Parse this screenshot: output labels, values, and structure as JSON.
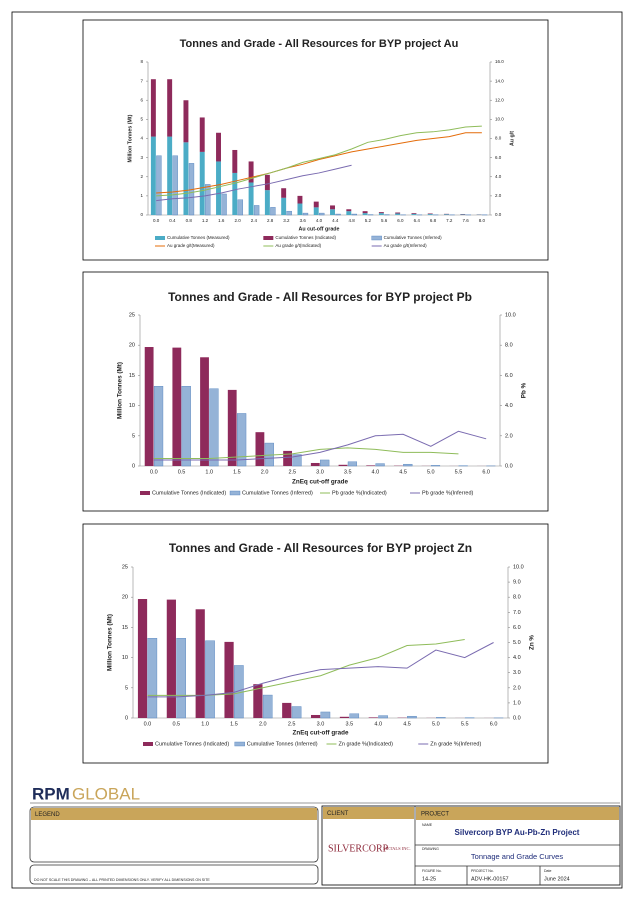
{
  "chart_data": [
    {
      "type": "combo",
      "title": "Tonnes and Grade - All Resources for BYP project Au",
      "x_label": "Au cut-off grade",
      "y_label": "Million Tonnes (Mt)",
      "y2_label": "Au g/t",
      "categories": [
        "0.0",
        "0.4",
        "0.8",
        "1.2",
        "1.6",
        "2.0",
        "2.4",
        "2.8",
        "3.2",
        "3.6",
        "4.0",
        "4.4",
        "4.8",
        "5.2",
        "5.6",
        "6.0",
        "6.4",
        "6.8",
        "7.2",
        "7.6",
        "8.0"
      ],
      "ylim": [
        0,
        8
      ],
      "yticks": [
        0,
        1,
        2,
        3,
        4,
        5,
        6,
        7,
        8
      ],
      "y2lim": [
        0,
        16
      ],
      "y2ticks": [
        {
          "value": 0,
          "label": "0.0"
        },
        {
          "value": 2,
          "label": "2.0"
        },
        {
          "value": 4,
          "label": "4.0"
        },
        {
          "value": 6,
          "label": "6.0"
        },
        {
          "value": 8,
          "label": "8.0"
        },
        {
          "value": 10,
          "label": "10.0"
        },
        {
          "value": 12,
          "label": "12.0"
        },
        {
          "value": 14,
          "label": "14.0"
        },
        {
          "value": 16,
          "label": "16.0"
        }
      ],
      "series": [
        {
          "name": "Cumulative Tonnes (Measured)",
          "type": "bar",
          "color": "#4bacc6",
          "values": [
            4.1,
            4.1,
            3.8,
            3.3,
            2.8,
            2.2,
            1.7,
            1.3,
            0.9,
            0.6,
            0.4,
            0.3,
            0.2,
            0.1,
            0.1,
            0.08,
            0.06,
            0.05,
            0.04,
            0.03,
            0.02
          ]
        },
        {
          "name": "Cumulative Tonnes (Indicated)",
          "type": "bar",
          "stacked": true,
          "color": "#8e2a5b",
          "values": [
            3.0,
            3.0,
            2.2,
            1.8,
            1.5,
            1.2,
            1.1,
            0.8,
            0.5,
            0.4,
            0.3,
            0.2,
            0.1,
            0.1,
            0.05,
            0.05,
            0.04,
            0.03,
            0.02,
            0.02,
            0.01
          ]
        },
        {
          "name": "Cumulative Tonnes (Inferred)",
          "type": "bar",
          "color": "#95b3d7",
          "values": [
            3.1,
            3.1,
            2.7,
            1.6,
            1.1,
            0.8,
            0.5,
            0.4,
            0.2,
            0.1,
            0.1,
            0.05,
            0.05,
            0.02,
            0.02,
            0.01,
            0.01,
            0.01,
            0.01,
            0.01,
            0.01
          ]
        },
        {
          "name": "Au grade g/t(Measured)",
          "type": "line",
          "axis": "y2",
          "color": "#e46c0a",
          "values": [
            2.3,
            2.4,
            2.6,
            2.9,
            3.2,
            3.6,
            4.0,
            4.4,
            4.9,
            5.3,
            5.8,
            6.2,
            6.6,
            6.9,
            7.2,
            7.5,
            7.8,
            8.0,
            8.2,
            8.6,
            8.6
          ]
        },
        {
          "name": "Au grade g/t(Indicated)",
          "type": "line",
          "axis": "y2",
          "color": "#8fbc5a",
          "values": [
            2.0,
            2.1,
            2.3,
            2.6,
            3.0,
            3.4,
            3.9,
            4.4,
            4.9,
            5.5,
            5.9,
            6.3,
            6.9,
            7.6,
            7.9,
            8.3,
            8.6,
            8.7,
            8.9,
            9.2,
            9.3
          ]
        },
        {
          "name": "Au grade g/t(Inferred)",
          "type": "line",
          "axis": "y2",
          "color": "#7a6bb0",
          "values": [
            1.5,
            1.7,
            1.8,
            2.0,
            2.3,
            2.7,
            3.0,
            3.3,
            3.7,
            4.1,
            4.4,
            4.8,
            5.2,
            null,
            null,
            null,
            null,
            null,
            null,
            null,
            null
          ]
        }
      ]
    },
    {
      "type": "combo",
      "title": "Tonnes and Grade - All Resources for BYP project Pb",
      "x_label": "ZnEq cut-off grade",
      "y_label": "Million Tonnes (Mt)",
      "y2_label": "Pb %",
      "categories": [
        "0.0",
        "0.5",
        "1.0",
        "1.5",
        "2.0",
        "2.5",
        "3.0",
        "3.5",
        "4.0",
        "4.5",
        "5.0",
        "5.5",
        "6.0"
      ],
      "ylim": [
        0,
        25
      ],
      "yticks": [
        0,
        5,
        10,
        15,
        20,
        25
      ],
      "y2lim": [
        0,
        10
      ],
      "y2ticks": [
        {
          "value": 0,
          "label": "0.0"
        },
        {
          "value": 2,
          "label": "2.0"
        },
        {
          "value": 4,
          "label": "4.0"
        },
        {
          "value": 6,
          "label": "6.0"
        },
        {
          "value": 8,
          "label": "8.0"
        },
        {
          "value": 10,
          "label": "10.0"
        }
      ],
      "series": [
        {
          "name": "Cumulative Tonnes (Indicated)",
          "type": "bar",
          "color": "#8e2a5b",
          "values": [
            19.7,
            19.6,
            18.0,
            12.6,
            5.6,
            2.5,
            0.5,
            0.2,
            0.1,
            0.05,
            0.02,
            0.01,
            0.01
          ]
        },
        {
          "name": "Cumulative Tonnes (Inferred)",
          "type": "bar",
          "color": "#95b3d7",
          "values": [
            13.2,
            13.2,
            12.8,
            8.7,
            3.8,
            1.9,
            1.0,
            0.7,
            0.4,
            0.3,
            0.1,
            0.05,
            0.02
          ]
        },
        {
          "name": "Pb grade %(Indicated)",
          "type": "line",
          "axis": "y2",
          "color": "#8fbc5a",
          "values": [
            0.5,
            0.5,
            0.5,
            0.6,
            0.7,
            0.8,
            1.1,
            1.2,
            1.1,
            0.9,
            0.9,
            0.8,
            null
          ]
        },
        {
          "name": "Pb grade %(Inferred)",
          "type": "line",
          "axis": "y2",
          "color": "#7a6bb0",
          "values": [
            0.4,
            0.4,
            0.4,
            0.4,
            0.5,
            0.6,
            0.9,
            1.4,
            2.0,
            2.1,
            1.3,
            2.3,
            1.8
          ]
        }
      ]
    },
    {
      "type": "combo",
      "title": "Tonnes and Grade - All Resources for BYP project Zn",
      "x_label": "ZnEq cut-off grade",
      "y_label": "Million Tonnes (Mt)",
      "y2_label": "Zn %",
      "categories": [
        "0.0",
        "0.5",
        "1.0",
        "1.5",
        "2.0",
        "2.5",
        "3.0",
        "3.5",
        "4.0",
        "4.5",
        "5.0",
        "5.5",
        "6.0"
      ],
      "ylim": [
        0,
        25
      ],
      "yticks": [
        0,
        5,
        10,
        15,
        20,
        25
      ],
      "y2lim": [
        0,
        10
      ],
      "y2ticks": [
        {
          "value": 0,
          "label": "0.0"
        },
        {
          "value": 1,
          "label": "1.0"
        },
        {
          "value": 2,
          "label": "2.0"
        },
        {
          "value": 3,
          "label": "3.0"
        },
        {
          "value": 4,
          "label": "4.0"
        },
        {
          "value": 5,
          "label": "5.0"
        },
        {
          "value": 6,
          "label": "6.0"
        },
        {
          "value": 7,
          "label": "7.0"
        },
        {
          "value": 8,
          "label": "8.0"
        },
        {
          "value": 9,
          "label": "9.0"
        },
        {
          "value": 10,
          "label": "10.0"
        }
      ],
      "series": [
        {
          "name": "Cumulative Tonnes (Indicated)",
          "type": "bar",
          "color": "#8e2a5b",
          "values": [
            19.7,
            19.6,
            18.0,
            12.6,
            5.6,
            2.5,
            0.5,
            0.2,
            0.1,
            0.05,
            0.02,
            0.01,
            0.01
          ]
        },
        {
          "name": "Cumulative Tonnes (Inferred)",
          "type": "bar",
          "color": "#95b3d7",
          "values": [
            13.2,
            13.2,
            12.8,
            8.7,
            3.8,
            1.9,
            1.0,
            0.7,
            0.4,
            0.3,
            0.1,
            0.05,
            0.02
          ]
        },
        {
          "name": "Zn grade %(Indicated)",
          "type": "line",
          "axis": "y2",
          "color": "#8fbc5a",
          "values": [
            1.5,
            1.5,
            1.5,
            1.6,
            2.0,
            2.4,
            2.8,
            3.5,
            4.0,
            4.8,
            4.9,
            5.2,
            null
          ]
        },
        {
          "name": "Zn grade %(Inferred)",
          "type": "line",
          "axis": "y2",
          "color": "#7a6bb0",
          "values": [
            1.4,
            1.4,
            1.5,
            1.7,
            2.3,
            2.8,
            3.2,
            3.3,
            3.4,
            3.3,
            4.5,
            4.0,
            5.0
          ]
        }
      ]
    }
  ],
  "footer": {
    "logo": [
      "RPM",
      "GLOBAL"
    ],
    "legend_heading": "LEGEND",
    "note": "DO NOT SCALE THIS DRAWING – ALL PRINTED DIMENSIONS ONLY. VERIFY ALL DIMENSIONS ON SITE",
    "client_heading": "CLIENT",
    "client": [
      "SILVERCORP",
      "METALS INC."
    ],
    "project_heading": "PROJECT",
    "name_label": "NAME",
    "project_name": "Silvercorp BYP Au-Pb-Zn Project",
    "drawing_label": "DRAWING",
    "drawing": "Tonnage and Grade Curves",
    "figure_label": "FIGURE No.",
    "figure": "14-25",
    "project_no_label": "PROJECT No.",
    "project_no": "ADV-HK-00157",
    "date_label": "Date",
    "date": "June 2024"
  }
}
